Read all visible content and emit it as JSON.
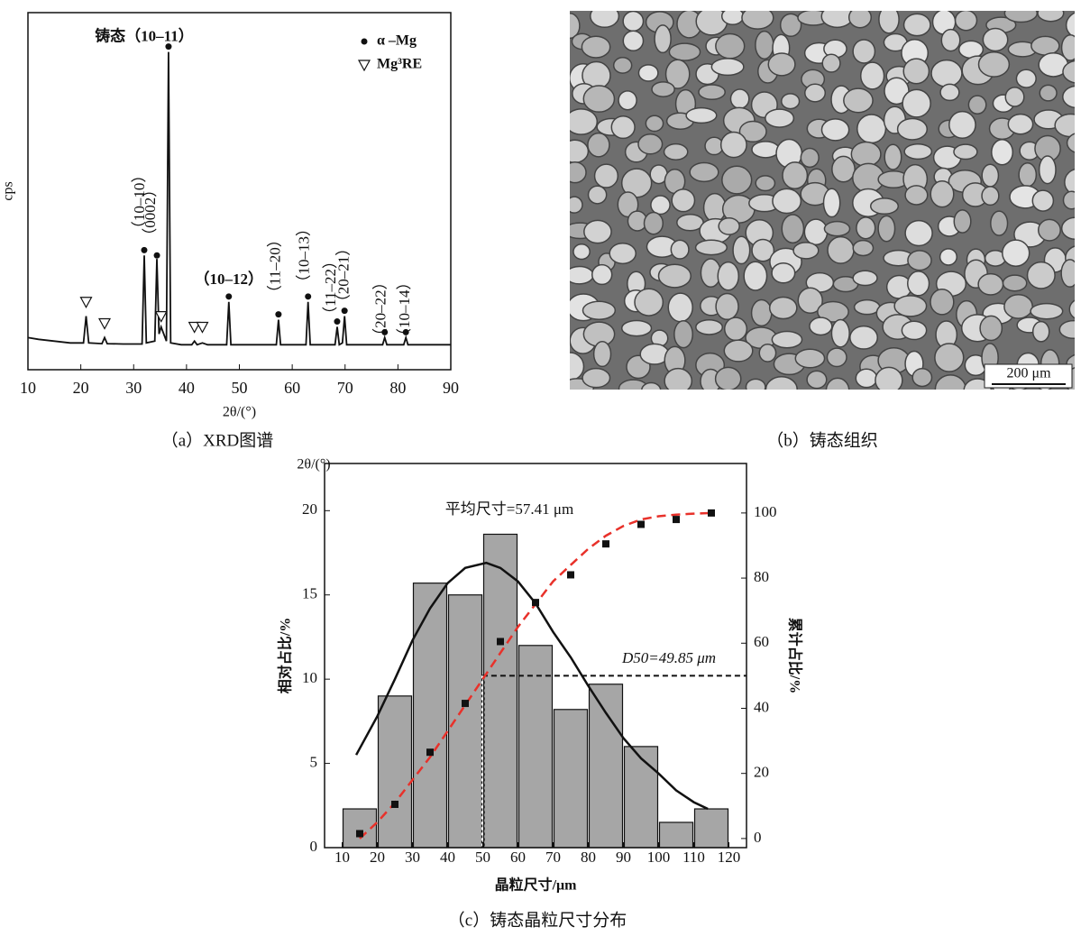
{
  "chart_data": [
    {
      "type": "line",
      "xlabel": "2θ/(°)",
      "ylabel": "cps",
      "caption": "（a）XRD图谱",
      "xlim": [
        10,
        90
      ],
      "ylim": [
        0,
        100
      ],
      "xticks": [
        10,
        20,
        30,
        40,
        50,
        60,
        70,
        80,
        90
      ],
      "series": [
        {
          "color": "#111111",
          "x": [
            10,
            12,
            15,
            18,
            20.5,
            21,
            21.5,
            24,
            24.5,
            25,
            28,
            31.6,
            32,
            32.4,
            34,
            34.4,
            34.8,
            35.2,
            36.2,
            36.6,
            37,
            39,
            41,
            41.5,
            42,
            43,
            44,
            47.6,
            48,
            48.4,
            52,
            57,
            57.4,
            57.8,
            60,
            62.6,
            63,
            63.4,
            66,
            68.1,
            68.5,
            68.9,
            69.5,
            69.9,
            70.3,
            74,
            77.1,
            77.5,
            77.9,
            81.1,
            81.5,
            81.9,
            86,
            90
          ],
          "values": [
            9,
            8.5,
            8,
            7.5,
            7.5,
            15,
            7.5,
            7.3,
            9,
            7.3,
            7.2,
            7.2,
            32,
            7.5,
            8,
            31,
            10,
            12,
            8,
            89,
            7.5,
            7,
            7,
            8,
            7,
            7.5,
            7,
            7,
            19,
            7,
            7,
            7,
            14,
            7,
            7,
            7,
            19,
            7,
            7,
            7,
            12,
            7,
            7.5,
            15,
            7,
            7,
            7,
            9,
            7,
            7,
            9,
            7,
            7,
            7
          ]
        }
      ],
      "markers": [
        {
          "name": "α –Mg",
          "symbol": "circle",
          "x": [
            32,
            34.4,
            36.6,
            48,
            57.4,
            63,
            68.5,
            69.9,
            77.5,
            81.5
          ],
          "values": [
            33.5,
            32,
            90.5,
            20.5,
            15.5,
            20.5,
            13.5,
            16.5,
            10.5,
            10.5
          ]
        },
        {
          "name": "Mg³RE",
          "symbol": "triangle",
          "x": [
            21,
            24.5,
            35.2,
            41.5,
            43
          ],
          "values": [
            19,
            13,
            15,
            12,
            12
          ]
        }
      ],
      "annotations": [
        {
          "text": "铸态（10–11）",
          "x": 32,
          "y": 93,
          "vertical": false
        },
        {
          "text": "（10–10）",
          "x": 31.3,
          "y": 47,
          "vertical": true
        },
        {
          "text": "（0002）",
          "x": 33.4,
          "y": 44,
          "vertical": true
        },
        {
          "text": "（10–12）",
          "x": 48,
          "y": 25,
          "vertical": false
        },
        {
          "text": "（11–20）",
          "x": 57,
          "y": 29,
          "vertical": true
        },
        {
          "text": "（10–13）",
          "x": 62.5,
          "y": 32,
          "vertical": true
        },
        {
          "text": "（11–22）",
          "x": 67.5,
          "y": 23,
          "vertical": true
        },
        {
          "text": "（20–21）",
          "x": 70,
          "y": 26.5,
          "vertical": true
        },
        {
          "text": "（20–22）",
          "x": 77,
          "y": 17,
          "vertical": true
        },
        {
          "text": "（10–14）",
          "x": 81.5,
          "y": 17,
          "vertical": true
        }
      ]
    },
    {
      "type": "histogram",
      "top_label": "2θ/(°)",
      "xlabel": "晶粒尺寸/μm",
      "ylabel": "相对占比/%",
      "y2label": "累计占比/%",
      "caption": "（c）铸态晶粒尺寸分布",
      "xlim": [
        5,
        125
      ],
      "ylim": [
        0,
        22.8
      ],
      "y2lim": [
        -2.8,
        115.2
      ],
      "xticks": [
        10,
        20,
        30,
        40,
        50,
        60,
        70,
        80,
        90,
        100,
        110,
        120
      ],
      "yticks": [
        0,
        5,
        10,
        15,
        20
      ],
      "y2ticks": [
        0,
        20,
        40,
        60,
        80,
        100
      ],
      "bins": [
        10,
        20,
        30,
        40,
        50,
        60,
        70,
        80,
        90,
        100,
        110,
        120
      ],
      "values": [
        2.3,
        9.0,
        15.7,
        15.0,
        18.6,
        12.0,
        8.2,
        9.7,
        6.0,
        1.5,
        2.3
      ],
      "color": "#a6a6a6",
      "series": [
        {
          "kind": "curve",
          "color": "#111111",
          "x": [
            14,
            20,
            25,
            30,
            35,
            40,
            45,
            51,
            55,
            60,
            65,
            70,
            75,
            80,
            85,
            90,
            95,
            100,
            105,
            110,
            114
          ],
          "values": [
            5.5,
            7.8,
            10,
            12.3,
            14.2,
            15.7,
            16.6,
            16.9,
            16.6,
            15.8,
            14.5,
            12.8,
            11.3,
            9.6,
            8,
            6.5,
            5.3,
            4.4,
            3.4,
            2.7,
            2.3
          ]
        },
        {
          "kind": "curve",
          "axis": "y2",
          "dashed": true,
          "color": "#e8312a",
          "x": [
            15,
            20,
            25,
            30,
            35,
            40,
            45,
            50,
            55,
            60,
            65,
            70,
            75,
            80,
            85,
            90,
            95,
            100,
            105,
            110,
            115
          ],
          "values": [
            0,
            5,
            11,
            18,
            25,
            33,
            41,
            49,
            57,
            65,
            72,
            79,
            84,
            89,
            93,
            96,
            98,
            99,
            99.5,
            99.8,
            100
          ]
        },
        {
          "kind": "points",
          "axis": "y2",
          "color": "#111111",
          "x": [
            15,
            25,
            35,
            45,
            55,
            65,
            75,
            85,
            95,
            105,
            115
          ],
          "values": [
            1.5,
            10.5,
            26.5,
            41.5,
            60.5,
            72.5,
            81,
            90.5,
            96.5,
            98,
            100
          ]
        }
      ],
      "d50": 49.85,
      "d50_level": 50,
      "mean_label": "平均尺寸=57.41 μm",
      "d50_label": "D50=49.85 μm"
    }
  ],
  "image": {
    "scale_bar": "200 μm",
    "caption": "（b）铸态组织"
  }
}
